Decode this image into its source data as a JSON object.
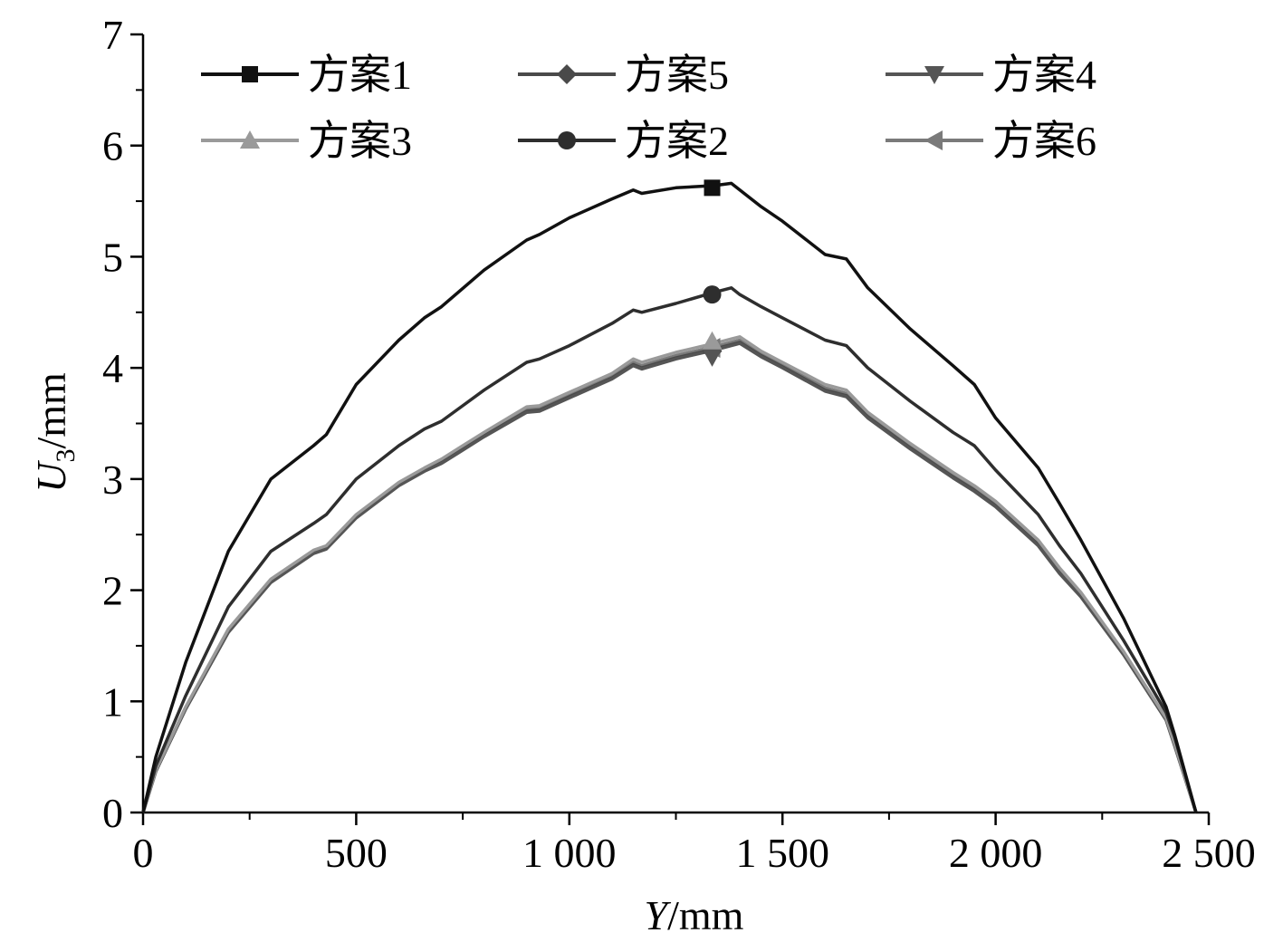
{
  "chart_data": {
    "type": "line",
    "xlabel": {
      "var": "Y",
      "unit": "/mm"
    },
    "ylabel": {
      "var": "U",
      "sub": "3",
      "unit": "/mm"
    },
    "xlim": [
      0,
      2500
    ],
    "ylim": [
      0,
      7
    ],
    "x_ticks": [
      {
        "value": 0,
        "label": "0"
      },
      {
        "value": 500,
        "label": "500"
      },
      {
        "value": 1000,
        "label": "1 000"
      },
      {
        "value": 1500,
        "label": "1 500"
      },
      {
        "value": 2000,
        "label": "2 000"
      },
      {
        "value": 2500,
        "label": "2 500"
      }
    ],
    "y_ticks": [
      {
        "value": 0,
        "label": "0"
      },
      {
        "value": 1,
        "label": "1"
      },
      {
        "value": 2,
        "label": "2"
      },
      {
        "value": 3,
        "label": "3"
      },
      {
        "value": 4,
        "label": "4"
      },
      {
        "value": 5,
        "label": "5"
      },
      {
        "value": 6,
        "label": "6"
      },
      {
        "value": 7,
        "label": "7"
      }
    ],
    "grid": false,
    "legend_position": "top",
    "series": [
      {
        "name": "方案1",
        "color": "#111111",
        "marker": "square",
        "marker_at": [
          1335,
          5.62
        ],
        "x": [
          0,
          30,
          100,
          200,
          300,
          400,
          430,
          500,
          600,
          660,
          700,
          800,
          900,
          930,
          1000,
          1100,
          1150,
          1170,
          1250,
          1340,
          1380,
          1400,
          1450,
          1500,
          1600,
          1650,
          1700,
          1800,
          1900,
          1950,
          2000,
          2100,
          2150,
          2200,
          2300,
          2400,
          2420,
          2470
        ],
        "y": [
          0,
          0.5,
          1.35,
          2.35,
          3.0,
          3.3,
          3.4,
          3.85,
          4.25,
          4.45,
          4.55,
          4.88,
          5.15,
          5.2,
          5.35,
          5.52,
          5.6,
          5.57,
          5.62,
          5.64,
          5.66,
          5.6,
          5.45,
          5.32,
          5.02,
          4.98,
          4.72,
          4.35,
          4.02,
          3.85,
          3.55,
          3.1,
          2.78,
          2.45,
          1.75,
          0.95,
          0.7,
          0
        ]
      },
      {
        "name": "方案2",
        "color": "#2e2e2e",
        "marker": "circle",
        "marker_at": [
          1335,
          4.66
        ],
        "x": [
          0,
          30,
          100,
          200,
          300,
          400,
          430,
          500,
          600,
          660,
          700,
          800,
          900,
          930,
          1000,
          1100,
          1150,
          1170,
          1250,
          1340,
          1380,
          1400,
          1450,
          1500,
          1600,
          1650,
          1700,
          1800,
          1900,
          1950,
          2000,
          2100,
          2150,
          2200,
          2300,
          2400,
          2420,
          2470
        ],
        "y": [
          0,
          0.42,
          1.05,
          1.85,
          2.35,
          2.6,
          2.68,
          3.0,
          3.3,
          3.45,
          3.52,
          3.8,
          4.05,
          4.08,
          4.2,
          4.4,
          4.52,
          4.5,
          4.58,
          4.68,
          4.72,
          4.66,
          4.55,
          4.45,
          4.25,
          4.2,
          4.0,
          3.7,
          3.42,
          3.3,
          3.08,
          2.68,
          2.4,
          2.15,
          1.55,
          0.9,
          0.68,
          0
        ]
      },
      {
        "name": "方案3",
        "color": "#9a9a9a",
        "marker": "triangle-up",
        "marker_at": [
          1335,
          4.24
        ],
        "x": [
          0,
          30,
          100,
          200,
          300,
          400,
          430,
          500,
          600,
          660,
          700,
          800,
          900,
          930,
          1000,
          1100,
          1150,
          1170,
          1250,
          1340,
          1380,
          1400,
          1450,
          1500,
          1600,
          1650,
          1700,
          1800,
          1900,
          1950,
          2000,
          2100,
          2150,
          2200,
          2300,
          2400,
          2420,
          2470
        ],
        "y": [
          0,
          0.38,
          0.95,
          1.65,
          2.1,
          2.36,
          2.4,
          2.68,
          2.97,
          3.1,
          3.18,
          3.42,
          3.65,
          3.66,
          3.78,
          3.95,
          4.08,
          4.05,
          4.14,
          4.22,
          4.26,
          4.28,
          4.15,
          4.05,
          3.85,
          3.8,
          3.6,
          3.32,
          3.06,
          2.94,
          2.8,
          2.45,
          2.2,
          1.98,
          1.45,
          0.85,
          0.62,
          0
        ]
      },
      {
        "name": "方案4",
        "color": "#555555",
        "marker": "triangle-down",
        "marker_at": [
          1335,
          4.1
        ],
        "x": [
          0,
          30,
          100,
          200,
          300,
          400,
          430,
          500,
          600,
          660,
          700,
          800,
          900,
          930,
          1000,
          1100,
          1150,
          1170,
          1250,
          1340,
          1380,
          1400,
          1450,
          1500,
          1600,
          1650,
          1700,
          1800,
          1900,
          1950,
          2000,
          2100,
          2150,
          2200,
          2300,
          2400,
          2420,
          2470
        ],
        "y": [
          0,
          0.37,
          0.93,
          1.62,
          2.07,
          2.33,
          2.37,
          2.65,
          2.94,
          3.07,
          3.14,
          3.38,
          3.6,
          3.61,
          3.73,
          3.9,
          4.02,
          3.99,
          4.08,
          4.16,
          4.2,
          4.22,
          4.1,
          4.0,
          3.79,
          3.74,
          3.55,
          3.27,
          3.01,
          2.89,
          2.75,
          2.4,
          2.15,
          1.94,
          1.42,
          0.83,
          0.6,
          0
        ]
      },
      {
        "name": "方案5",
        "color": "#4a4a4a",
        "marker": "diamond",
        "marker_at": [
          1335,
          4.15
        ],
        "x": [
          0,
          30,
          100,
          200,
          300,
          400,
          430,
          500,
          600,
          660,
          700,
          800,
          900,
          930,
          1000,
          1100,
          1150,
          1170,
          1250,
          1340,
          1380,
          1400,
          1450,
          1500,
          1600,
          1650,
          1700,
          1800,
          1900,
          1950,
          2000,
          2100,
          2150,
          2200,
          2300,
          2400,
          2420,
          2470
        ],
        "y": [
          0,
          0.37,
          0.94,
          1.63,
          2.08,
          2.34,
          2.38,
          2.66,
          2.95,
          3.08,
          3.15,
          3.39,
          3.61,
          3.62,
          3.74,
          3.91,
          4.03,
          4.0,
          4.09,
          4.17,
          4.21,
          4.23,
          4.11,
          4.01,
          3.8,
          3.75,
          3.56,
          3.28,
          3.02,
          2.9,
          2.76,
          2.41,
          2.16,
          1.95,
          1.43,
          0.84,
          0.61,
          0
        ]
      },
      {
        "name": "方案6",
        "color": "#7a7a7a",
        "marker": "triangle-left",
        "marker_at": [
          1335,
          4.18
        ],
        "x": [
          0,
          30,
          100,
          200,
          300,
          400,
          430,
          500,
          600,
          660,
          700,
          800,
          900,
          930,
          1000,
          1100,
          1150,
          1170,
          1250,
          1340,
          1380,
          1400,
          1450,
          1500,
          1600,
          1650,
          1700,
          1800,
          1900,
          1950,
          2000,
          2100,
          2150,
          2200,
          2300,
          2400,
          2420,
          2470
        ],
        "y": [
          0,
          0.38,
          0.94,
          1.64,
          2.09,
          2.35,
          2.39,
          2.67,
          2.96,
          3.09,
          3.16,
          3.4,
          3.63,
          3.64,
          3.76,
          3.93,
          4.05,
          4.02,
          4.11,
          4.19,
          4.23,
          4.25,
          4.13,
          4.03,
          3.82,
          3.77,
          3.58,
          3.3,
          3.04,
          2.92,
          2.78,
          2.43,
          2.18,
          1.96,
          1.44,
          0.84,
          0.61,
          0
        ]
      }
    ],
    "legend_order": [
      0,
      2,
      4,
      1,
      3,
      5
    ]
  }
}
